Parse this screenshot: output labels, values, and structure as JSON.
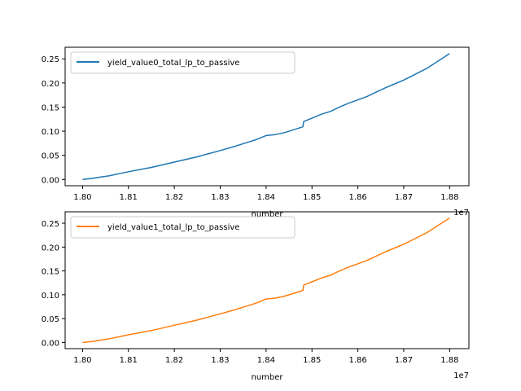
{
  "chart_data": [
    {
      "type": "line",
      "xlabel": "number",
      "ylabel": "",
      "x_offset_text": "1e7",
      "x_ticks": [
        1.8,
        1.81,
        1.82,
        1.83,
        1.84,
        1.85,
        1.86,
        1.87,
        1.88
      ],
      "x_tick_labels": [
        "1.80",
        "1.81",
        "1.82",
        "1.83",
        "1.84",
        "1.85",
        "1.86",
        "1.87",
        "1.88"
      ],
      "y_ticks": [
        0.0,
        0.05,
        0.1,
        0.15,
        0.2,
        0.25
      ],
      "y_tick_labels": [
        "0.00",
        "0.05",
        "0.10",
        "0.15",
        "0.20",
        "0.25"
      ],
      "xlim": [
        1.7962,
        1.8842
      ],
      "ylim": [
        -0.013,
        0.274
      ],
      "grid": false,
      "legend_placement": "upper-left",
      "series": [
        {
          "name": "yield_value0_total_lp_to_passive",
          "color": "#1f77b4",
          "x": [
            1.8,
            1.802,
            1.804,
            1.806,
            1.808,
            1.81,
            1.815,
            1.82,
            1.825,
            1.83,
            1.833,
            1.836,
            1.838,
            1.84,
            1.842,
            1.844,
            1.846,
            1.848,
            1.8482,
            1.85,
            1.852,
            1.854,
            1.856,
            1.858,
            1.86,
            1.862,
            1.864,
            1.866,
            1.868,
            1.87,
            1.875,
            1.88
          ],
          "values": [
            0.0,
            0.002,
            0.005,
            0.008,
            0.012,
            0.016,
            0.025,
            0.036,
            0.047,
            0.06,
            0.068,
            0.077,
            0.083,
            0.091,
            0.093,
            0.097,
            0.103,
            0.109,
            0.12,
            0.127,
            0.135,
            0.141,
            0.15,
            0.158,
            0.165,
            0.172,
            0.181,
            0.19,
            0.198,
            0.206,
            0.23,
            0.261
          ]
        }
      ]
    },
    {
      "type": "line",
      "xlabel": "number",
      "ylabel": "",
      "x_offset_text": "1e7",
      "x_ticks": [
        1.8,
        1.81,
        1.82,
        1.83,
        1.84,
        1.85,
        1.86,
        1.87,
        1.88
      ],
      "x_tick_labels": [
        "1.80",
        "1.81",
        "1.82",
        "1.83",
        "1.84",
        "1.85",
        "1.86",
        "1.87",
        "1.88"
      ],
      "y_ticks": [
        0.0,
        0.05,
        0.1,
        0.15,
        0.2,
        0.25
      ],
      "y_tick_labels": [
        "0.00",
        "0.05",
        "0.10",
        "0.15",
        "0.20",
        "0.25"
      ],
      "xlim": [
        1.7962,
        1.8842
      ],
      "ylim": [
        -0.013,
        0.274
      ],
      "grid": false,
      "legend_placement": "upper-left",
      "series": [
        {
          "name": "yield_value1_total_lp_to_passive",
          "color": "#ff7f0e",
          "x": [
            1.8,
            1.802,
            1.804,
            1.806,
            1.808,
            1.81,
            1.815,
            1.82,
            1.825,
            1.83,
            1.833,
            1.836,
            1.838,
            1.84,
            1.842,
            1.844,
            1.846,
            1.848,
            1.8482,
            1.85,
            1.852,
            1.854,
            1.856,
            1.858,
            1.86,
            1.862,
            1.864,
            1.866,
            1.868,
            1.87,
            1.875,
            1.88
          ],
          "values": [
            0.0,
            0.002,
            0.005,
            0.008,
            0.012,
            0.016,
            0.025,
            0.036,
            0.047,
            0.06,
            0.068,
            0.077,
            0.083,
            0.091,
            0.093,
            0.097,
            0.103,
            0.109,
            0.12,
            0.127,
            0.135,
            0.141,
            0.15,
            0.158,
            0.165,
            0.172,
            0.181,
            0.19,
            0.198,
            0.206,
            0.23,
            0.261
          ]
        }
      ]
    }
  ]
}
